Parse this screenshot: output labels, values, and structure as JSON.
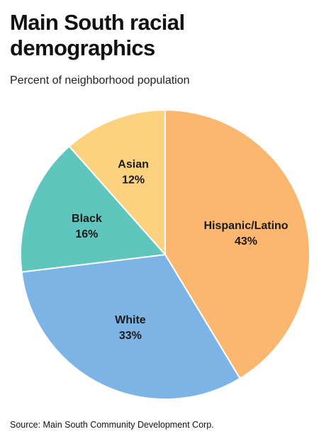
{
  "chart_data": {
    "type": "pie",
    "title": "Main South racial demographics",
    "subtitle": "Percent of neighborhood population",
    "source": "Source: Main South Community Development Corp.",
    "slices": [
      {
        "label": "Hispanic/Latino",
        "value": 43,
        "value_label": "43%",
        "color": "#fbb66f"
      },
      {
        "label": "White",
        "value": 33,
        "value_label": "33%",
        "color": "#7db4e6"
      },
      {
        "label": "Black",
        "value": 16,
        "value_label": "16%",
        "color": "#5ec6bc"
      },
      {
        "label": "Asian",
        "value": 12,
        "value_label": "12%",
        "color": "#fdd27f"
      }
    ],
    "start_angle": "12 o'clock",
    "direction": "clockwise",
    "legend": "none"
  }
}
